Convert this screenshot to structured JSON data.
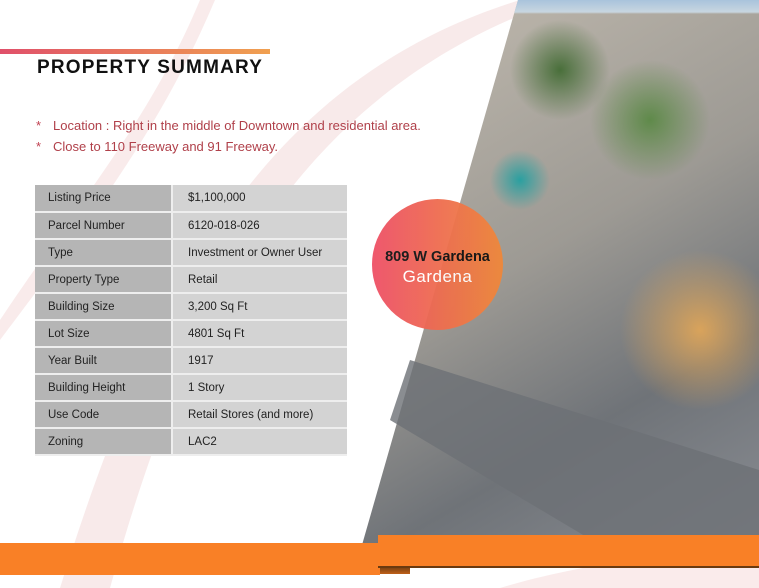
{
  "header": {
    "title": "PROPERTY SUMMARY"
  },
  "highlights": [
    {
      "marker": "*",
      "text": "Location : Right in the middle of Downtown and residential area."
    },
    {
      "marker": "*",
      "text": "Close to 110 Freeway and 91 Freeway."
    }
  ],
  "details": [
    {
      "label": "Listing Price",
      "value": "$1,100,000"
    },
    {
      "label": "Parcel Number",
      "value": "6120-018-026"
    },
    {
      "label": "Type",
      "value": "Investment or Owner User"
    },
    {
      "label": "Property Type",
      "value": "Retail"
    },
    {
      "label": "Building Size",
      "value": "3,200 Sq Ft"
    },
    {
      "label": "Lot Size",
      "value": "4801 Sq Ft"
    },
    {
      "label": "Year Built",
      "value": "1917"
    },
    {
      "label": "Building Height",
      "value": "1 Story"
    },
    {
      "label": "Use Code",
      "value": "Retail Stores (and more)"
    },
    {
      "label": "Zoning",
      "value": "LAC2"
    }
  ],
  "badge": {
    "address": "809 W Gardena",
    "city": "Gardena"
  },
  "colors": {
    "accent_orange": "#f98026",
    "bullet_text": "#b0404a",
    "badge_start": "#ee4f66",
    "badge_end": "#f0883a"
  }
}
